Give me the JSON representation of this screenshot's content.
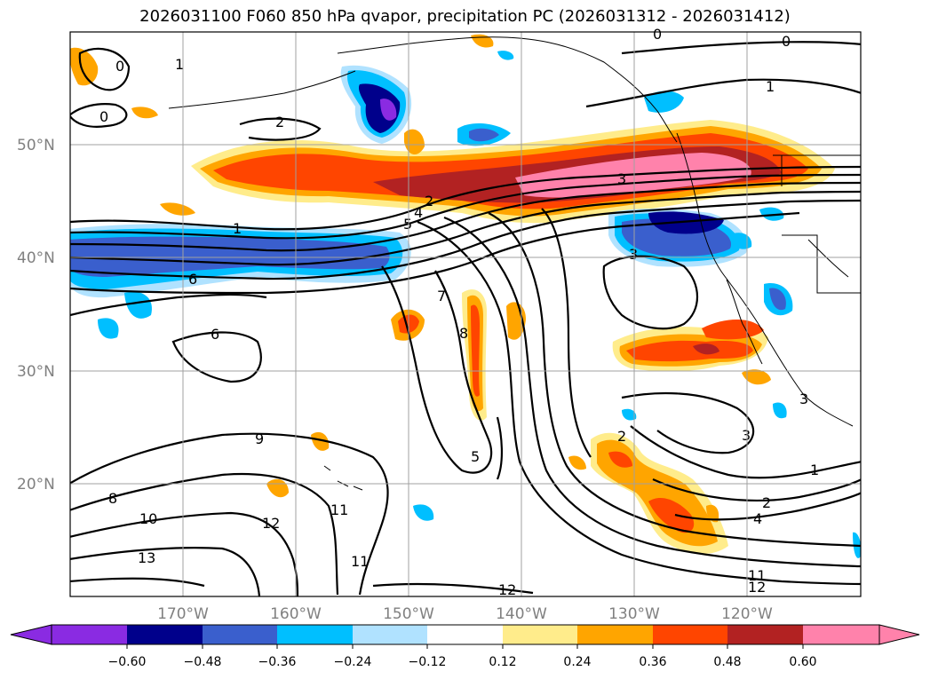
{
  "title": "2026031100 F060 850 hPa qvapor, precipitation PC (2026031312 - 2026031412)",
  "lat_labels": [
    "50°N",
    "40°N",
    "30°N",
    "20°N"
  ],
  "lon_labels": [
    "170°W",
    "160°W",
    "150°W",
    "140°W",
    "130°W",
    "120°W"
  ],
  "colorbar": {
    "ticks": [
      "−0.60",
      "−0.48",
      "−0.36",
      "−0.24",
      "−0.12",
      "0.12",
      "0.24",
      "0.36",
      "0.48",
      "0.60"
    ],
    "colors": [
      "#8a2be2",
      "#00008b",
      "#3a5fcd",
      "#00bfff",
      "#b0e2ff",
      "#ffffff",
      "#ffec8b",
      "#ffa500",
      "#ff4500",
      "#b22222",
      "#ff82ab",
      "#ff82ab"
    ]
  },
  "contour_labels": {
    "c0a": "0",
    "c0b": "0",
    "c0c": "0",
    "c0d": "0",
    "c1a": "1",
    "c1b": "1",
    "c1c": "1",
    "c1d": "1",
    "c2a": "2",
    "c2b": "2",
    "c2c": "2",
    "c2d": "2",
    "c3a": "3",
    "c3b": "3",
    "c3c": "3",
    "c3d": "3",
    "c4a": "4",
    "c4b": "4",
    "c5a": "5",
    "c5b": "5",
    "c6a": "6",
    "c6b": "6",
    "c7": "7",
    "c8a": "8",
    "c8b": "8",
    "c9": "9",
    "c10": "10",
    "c11a": "11",
    "c11b": "11",
    "c11c": "11",
    "c12a": "12",
    "c12b": "12",
    "c12c": "12",
    "c13": "13"
  }
}
